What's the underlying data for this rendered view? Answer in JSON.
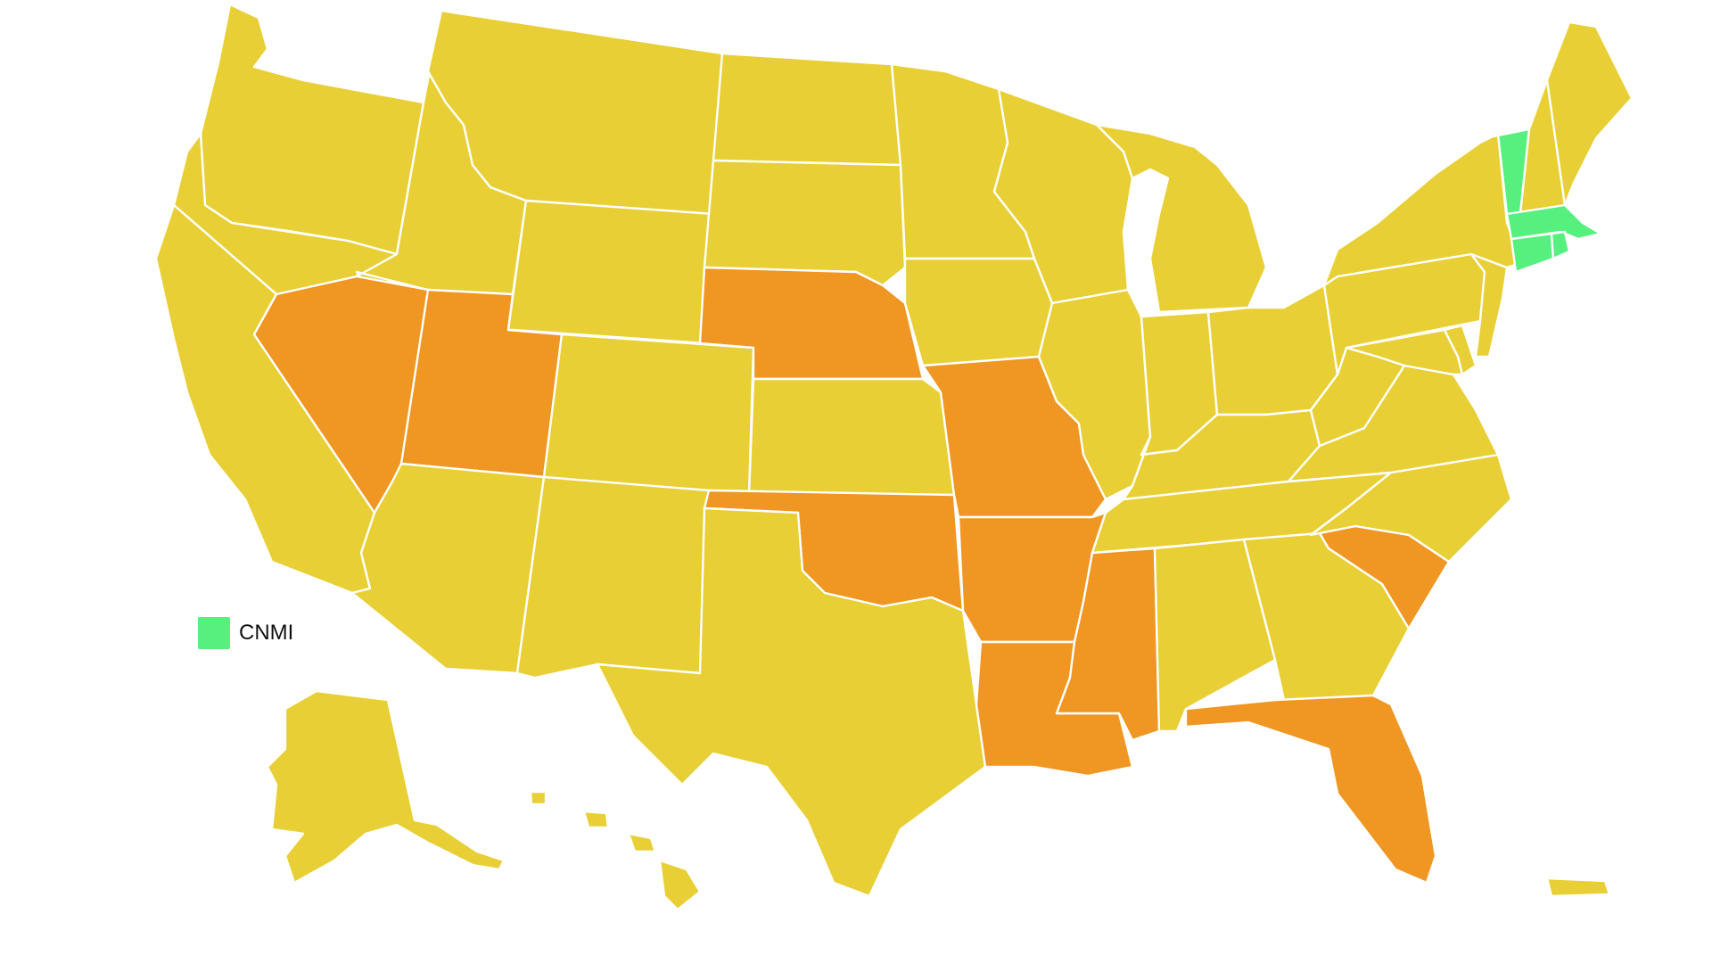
{
  "colors": {
    "background": "#ffffff",
    "yellow": "#E8CF35",
    "orange": "#EF9623",
    "green": "#56F07E",
    "border": "#ffffff"
  },
  "legend": {
    "label": "CNMI",
    "color": "#56F07E"
  },
  "states": {
    "WA": "yellow",
    "OR": "yellow",
    "CA": "yellow",
    "ID": "yellow",
    "NV": "orange",
    "UT": "orange",
    "AZ": "yellow",
    "MT": "yellow",
    "WY": "yellow",
    "CO": "yellow",
    "NM": "yellow",
    "ND": "yellow",
    "SD": "yellow",
    "NE": "orange",
    "KS": "yellow",
    "OK": "orange",
    "TX": "yellow",
    "MN": "yellow",
    "IA": "yellow",
    "MO": "orange",
    "AR": "orange",
    "LA": "orange",
    "WI": "yellow",
    "IL": "yellow",
    "MI": "yellow",
    "IN": "yellow",
    "OH": "yellow",
    "KY": "yellow",
    "TN": "yellow",
    "MS": "orange",
    "AL": "yellow",
    "GA": "yellow",
    "FL": "orange",
    "SC": "orange",
    "NC": "yellow",
    "VA": "yellow",
    "WV": "yellow",
    "PA": "yellow",
    "NY": "yellow",
    "NJ": "yellow",
    "DE": "yellow",
    "MD": "yellow",
    "VT": "green",
    "NH": "yellow",
    "ME": "yellow",
    "MA": "green",
    "CT": "green",
    "RI": "green",
    "AK": "yellow",
    "HI": "yellow",
    "PR": "yellow"
  }
}
